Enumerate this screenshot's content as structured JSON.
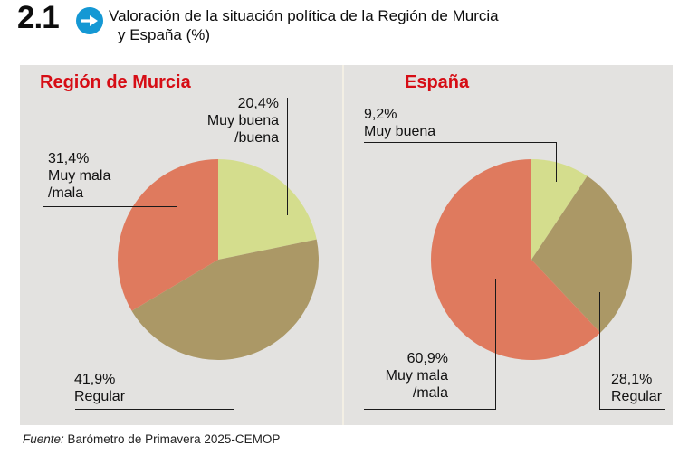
{
  "header": {
    "number": "2.1",
    "title_line1": "Valoración de la situación política de la Región de Murcia",
    "title_line2": "y España  (%)"
  },
  "footer": {
    "source_label": "Fuente:",
    "source_text": " Barómetro de Primavera 2025-CEMOP"
  },
  "colors": {
    "panel_bg": "#e3e2e0",
    "divider": "#f3efe4",
    "title_red": "#d60d15",
    "header_blue": "#1498d4",
    "slice_good": "#d4dd8d",
    "slice_regular": "#ab9866",
    "slice_bad": "#df7a5e",
    "line": "#1a1a1a"
  },
  "chart_data": [
    {
      "type": "pie",
      "title": "Región de Murcia",
      "categories": [
        "Muy buena/buena",
        "Regular",
        "Muy mala/mala"
      ],
      "values": [
        20.4,
        41.9,
        31.4
      ],
      "unit": "%",
      "colors": [
        "#d4dd8d",
        "#ab9866",
        "#df7a5e"
      ],
      "start_angle_deg": 0,
      "direction": "clockwise",
      "angles_normalized_to_sum": true,
      "labels": [
        {
          "slice": 0,
          "lines": [
            "20,4%",
            "Muy buena",
            "/buena"
          ]
        },
        {
          "slice": 2,
          "lines": [
            "31,4%",
            "Muy mala",
            "/mala"
          ]
        },
        {
          "slice": 1,
          "lines": [
            "41,9%",
            "Regular"
          ]
        }
      ]
    },
    {
      "type": "pie",
      "title": "España",
      "categories": [
        "Muy buena",
        "Regular",
        "Muy mala/mala"
      ],
      "values": [
        9.2,
        28.1,
        60.9
      ],
      "unit": "%",
      "colors": [
        "#d4dd8d",
        "#ab9866",
        "#df7a5e"
      ],
      "start_angle_deg": 0,
      "direction": "clockwise",
      "angles_normalized_to_sum": true,
      "labels": [
        {
          "slice": 0,
          "lines": [
            "9,2%",
            "Muy buena"
          ]
        },
        {
          "slice": 2,
          "lines": [
            "60,9%",
            "Muy mala",
            "/mala"
          ]
        },
        {
          "slice": 1,
          "lines": [
            "28,1%",
            "Regular"
          ]
        }
      ]
    }
  ]
}
